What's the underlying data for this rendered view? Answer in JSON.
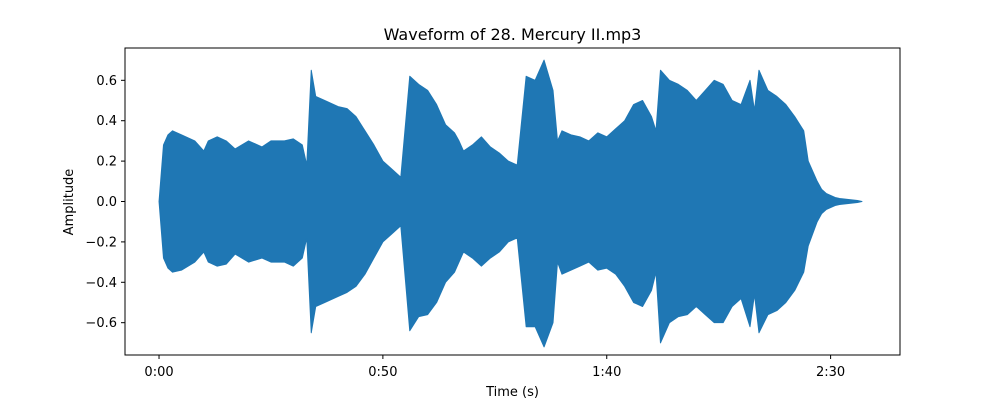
{
  "chart_data": {
    "type": "area",
    "title": "Waveform of 28. Mercury II.mp3",
    "xlabel": "Time (s)",
    "ylabel": "Amplitude",
    "xlim": [
      -7.6,
      165.5
    ],
    "ylim": [
      -0.76,
      0.76
    ],
    "x_ticks": [
      {
        "value": 0,
        "label": "0:00"
      },
      {
        "value": 50,
        "label": "0:50"
      },
      {
        "value": 100,
        "label": "1:40"
      },
      {
        "value": 150,
        "label": "2:30"
      }
    ],
    "y_ticks": [
      {
        "value": -0.6,
        "label": "−0.6"
      },
      {
        "value": -0.4,
        "label": "−0.4"
      },
      {
        "value": -0.2,
        "label": "−0.2"
      },
      {
        "value": 0.0,
        "label": "0.0"
      },
      {
        "value": 0.2,
        "label": "0.2"
      },
      {
        "value": 0.4,
        "label": "0.4"
      },
      {
        "value": 0.6,
        "label": "0.6"
      }
    ],
    "grid": false,
    "color": "#1f77b4",
    "envelope": {
      "time": [
        0,
        1,
        2,
        3,
        5,
        8,
        10,
        11,
        13,
        15,
        17,
        20,
        23,
        25,
        28,
        30,
        32,
        33,
        34,
        35,
        37,
        40,
        42,
        44,
        46,
        48,
        50,
        52,
        54,
        56,
        58,
        60,
        62,
        64,
        66,
        67,
        68,
        70,
        72,
        74,
        76,
        78,
        80,
        82,
        84,
        86,
        88,
        89,
        90,
        92,
        94,
        96,
        98,
        100,
        102,
        104,
        106,
        108,
        110,
        111,
        112,
        114,
        116,
        118,
        120,
        122,
        124,
        126,
        128,
        130,
        132,
        133,
        134,
        136,
        138,
        140,
        142,
        144,
        145,
        146,
        147,
        148,
        149,
        150,
        151,
        152,
        154,
        156,
        157
      ],
      "upper": [
        0.0,
        0.28,
        0.33,
        0.35,
        0.33,
        0.3,
        0.25,
        0.3,
        0.32,
        0.3,
        0.26,
        0.3,
        0.27,
        0.3,
        0.3,
        0.31,
        0.28,
        0.18,
        0.65,
        0.52,
        0.5,
        0.47,
        0.46,
        0.42,
        0.35,
        0.28,
        0.2,
        0.16,
        0.12,
        0.62,
        0.58,
        0.55,
        0.48,
        0.38,
        0.34,
        0.3,
        0.25,
        0.28,
        0.32,
        0.27,
        0.24,
        0.2,
        0.18,
        0.62,
        0.6,
        0.7,
        0.55,
        0.3,
        0.35,
        0.33,
        0.32,
        0.3,
        0.34,
        0.32,
        0.36,
        0.4,
        0.48,
        0.5,
        0.42,
        0.35,
        0.65,
        0.6,
        0.58,
        0.55,
        0.5,
        0.55,
        0.6,
        0.58,
        0.5,
        0.48,
        0.6,
        0.45,
        0.65,
        0.55,
        0.52,
        0.48,
        0.42,
        0.35,
        0.2,
        0.15,
        0.1,
        0.06,
        0.04,
        0.03,
        0.02,
        0.015,
        0.01,
        0.005,
        0.0
      ],
      "lower": [
        0.0,
        -0.28,
        -0.33,
        -0.35,
        -0.34,
        -0.3,
        -0.25,
        -0.3,
        -0.32,
        -0.31,
        -0.26,
        -0.3,
        -0.28,
        -0.3,
        -0.3,
        -0.32,
        -0.28,
        -0.18,
        -0.65,
        -0.52,
        -0.5,
        -0.47,
        -0.45,
        -0.42,
        -0.36,
        -0.28,
        -0.2,
        -0.16,
        -0.12,
        -0.64,
        -0.57,
        -0.56,
        -0.5,
        -0.4,
        -0.35,
        -0.3,
        -0.25,
        -0.28,
        -0.32,
        -0.28,
        -0.25,
        -0.2,
        -0.18,
        -0.62,
        -0.62,
        -0.72,
        -0.6,
        -0.3,
        -0.36,
        -0.34,
        -0.32,
        -0.3,
        -0.34,
        -0.33,
        -0.36,
        -0.42,
        -0.5,
        -0.52,
        -0.44,
        -0.35,
        -0.7,
        -0.6,
        -0.57,
        -0.56,
        -0.52,
        -0.56,
        -0.6,
        -0.6,
        -0.52,
        -0.48,
        -0.62,
        -0.46,
        -0.65,
        -0.56,
        -0.54,
        -0.5,
        -0.44,
        -0.35,
        -0.22,
        -0.16,
        -0.1,
        -0.06,
        -0.04,
        -0.03,
        -0.02,
        -0.015,
        -0.01,
        -0.005,
        0.0
      ]
    }
  }
}
